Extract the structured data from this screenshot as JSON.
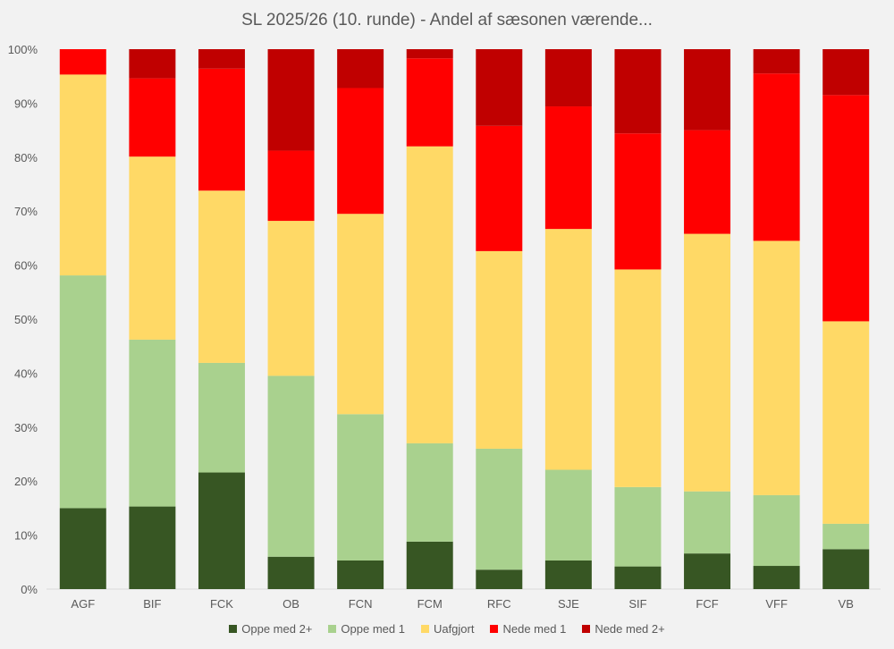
{
  "chart_data": {
    "type": "bar",
    "stacked": true,
    "title": "SL 2025/26 (10. runde) - Andel af sæsonen værende...",
    "xlabel": "",
    "ylabel": "",
    "ylim": [
      0,
      100
    ],
    "yticks": [
      "0%",
      "10%",
      "20%",
      "30%",
      "40%",
      "50%",
      "60%",
      "70%",
      "80%",
      "90%",
      "100%"
    ],
    "grid": false,
    "legend_position": "bottom",
    "categories": [
      "AGF",
      "BIF",
      "FCK",
      "OB",
      "FCN",
      "FCM",
      "RFC",
      "SJE",
      "SIF",
      "FCF",
      "VFF",
      "VB"
    ],
    "series": [
      {
        "name": "Oppe med 2+",
        "color": "#375623",
        "values": [
          15.0,
          15.3,
          21.6,
          6.0,
          5.3,
          8.8,
          3.6,
          5.3,
          4.2,
          6.6,
          4.3,
          7.4
        ]
      },
      {
        "name": "Oppe med 1",
        "color": "#a9d18e",
        "values": [
          43.1,
          30.9,
          20.3,
          33.5,
          27.1,
          18.2,
          22.4,
          16.8,
          14.7,
          11.5,
          13.1,
          4.7
        ]
      },
      {
        "name": "Uafgjort",
        "color": "#ffd966",
        "values": [
          37.2,
          33.9,
          31.9,
          28.7,
          37.1,
          55.0,
          36.6,
          44.6,
          40.3,
          47.7,
          47.1,
          37.5
        ]
      },
      {
        "name": "Nede med 1",
        "color": "#ff0000",
        "values": [
          4.7,
          14.5,
          22.6,
          13.0,
          23.3,
          16.3,
          23.2,
          22.7,
          25.2,
          19.2,
          31.0,
          41.9
        ]
      },
      {
        "name": "Nede med 2+",
        "color": "#c00000",
        "values": [
          0.0,
          5.4,
          3.6,
          18.8,
          7.2,
          1.7,
          14.2,
          10.6,
          15.6,
          15.0,
          4.5,
          8.5
        ]
      }
    ]
  }
}
